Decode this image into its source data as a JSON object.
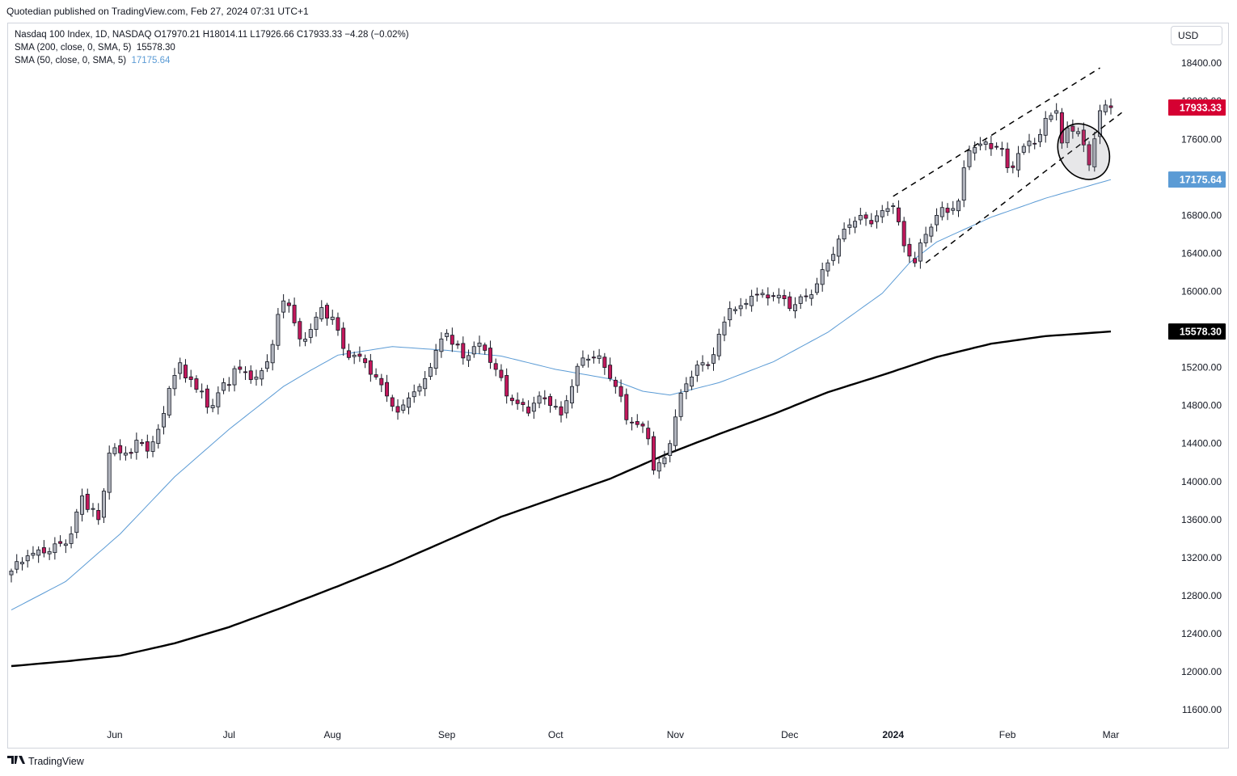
{
  "header": {
    "publisher_line": "Quotedian published on TradingView.com, Feb 27, 2024 07:31 UTC+1"
  },
  "legend": {
    "main": "Nasdaq 100 Index, 1D, NASDAQ  O17970.21  H18014.11  L17926.66  C17933.33  −4.28 (−0.02%)",
    "sma200_label": "SMA (200, close, 0, SMA, 5)",
    "sma200_value": "15578.30",
    "sma50_label": "SMA (50, close, 0, SMA, 5)",
    "sma50_value": "17175.64"
  },
  "currency": "USD",
  "footer": {
    "brand": "TradingView",
    "logo": "tradingview-logo-icon"
  },
  "colors": {
    "up_body": "#b2b5be",
    "down_body": "#c2185b",
    "candle_border": "#131722",
    "sma50": "#5b9bd5",
    "sma200": "#000000",
    "last_price_label": "#d50032",
    "sma50_label": "#5b9bd5",
    "sma200_label": "#000000"
  },
  "chart_data": {
    "type": "candlestick",
    "symbol": "Nasdaq 100 Index",
    "interval": "1D",
    "y_axis": {
      "range": [
        11400,
        18700
      ],
      "ticks": [
        11600,
        12000,
        12400,
        12800,
        13200,
        13600,
        14000,
        14400,
        14800,
        15200,
        15600,
        16000,
        16400,
        16800,
        17200,
        17600,
        18000,
        18400
      ],
      "tick_labels": [
        "11600.00",
        "12000.00",
        "12400.00",
        "12800.00",
        "13200.00",
        "13600.00",
        "14000.00",
        "14400.00",
        "14800.00",
        "15200.00",
        "15600.00",
        "16000.00",
        "16400.00",
        "16800.00",
        "17200.00",
        "17600.00",
        "18000.00",
        "18400.00"
      ]
    },
    "x_axis": {
      "labels": [
        {
          "text": "Jun",
          "bold": false
        },
        {
          "text": "Jul",
          "bold": false
        },
        {
          "text": "Aug",
          "bold": false
        },
        {
          "text": "Sep",
          "bold": false
        },
        {
          "text": "Oct",
          "bold": false
        },
        {
          "text": "Nov",
          "bold": false
        },
        {
          "text": "Dec",
          "bold": false
        },
        {
          "text": "2024",
          "bold": true
        },
        {
          "text": "Feb",
          "bold": false
        },
        {
          "text": "Mar",
          "bold": false
        }
      ],
      "label_bar_index": [
        19,
        40,
        59,
        80,
        100,
        122,
        143,
        162,
        183,
        202
      ]
    },
    "close_anchors": [
      [
        0,
        13060
      ],
      [
        3,
        13220
      ],
      [
        6,
        13250
      ],
      [
        9,
        13350
      ],
      [
        11,
        13450
      ],
      [
        13,
        13850
      ],
      [
        16,
        13600
      ],
      [
        17,
        13900
      ],
      [
        18,
        14300
      ],
      [
        21,
        14300
      ],
      [
        24,
        14400
      ],
      [
        25,
        14320
      ],
      [
        27,
        14550
      ],
      [
        29,
        14980
      ],
      [
        31,
        15250
      ],
      [
        34,
        14970
      ],
      [
        37,
        14800
      ],
      [
        39,
        15040
      ],
      [
        42,
        15180
      ],
      [
        45,
        15100
      ],
      [
        47,
        15260
      ],
      [
        50,
        15900
      ],
      [
        51,
        15850
      ],
      [
        53,
        15500
      ],
      [
        55,
        15600
      ],
      [
        57,
        15830
      ],
      [
        59,
        15730
      ],
      [
        61,
        15400
      ],
      [
        63,
        15330
      ],
      [
        65,
        15250
      ],
      [
        67,
        15100
      ],
      [
        69,
        14900
      ],
      [
        71,
        14730
      ],
      [
        73,
        14880
      ],
      [
        75,
        15000
      ],
      [
        77,
        15200
      ],
      [
        79,
        15500
      ],
      [
        80,
        15560
      ],
      [
        83,
        15300
      ],
      [
        85,
        15420
      ],
      [
        87,
        15380
      ],
      [
        89,
        15180
      ],
      [
        91,
        14900
      ],
      [
        93,
        14820
      ],
      [
        95,
        14720
      ],
      [
        97,
        14900
      ],
      [
        99,
        14800
      ],
      [
        101,
        14700
      ],
      [
        103,
        15000
      ],
      [
        105,
        15300
      ],
      [
        107,
        15300
      ],
      [
        109,
        15200
      ],
      [
        111,
        15000
      ],
      [
        113,
        14650
      ],
      [
        115,
        14600
      ],
      [
        117,
        14450
      ],
      [
        118,
        14120
      ],
      [
        120,
        14250
      ],
      [
        121,
        14400
      ],
      [
        122,
        14680
      ],
      [
        123,
        14930
      ],
      [
        125,
        15100
      ],
      [
        127,
        15250
      ],
      [
        128,
        15220
      ],
      [
        130,
        15550
      ],
      [
        132,
        15820
      ],
      [
        134,
        15850
      ],
      [
        136,
        15950
      ],
      [
        138,
        15980
      ],
      [
        141,
        15960
      ],
      [
        143,
        15820
      ],
      [
        146,
        15950
      ],
      [
        148,
        16080
      ],
      [
        150,
        16300
      ],
      [
        152,
        16550
      ],
      [
        154,
        16700
      ],
      [
        156,
        16800
      ],
      [
        158,
        16710
      ],
      [
        160,
        16850
      ],
      [
        162,
        16900
      ],
      [
        164,
        16480
      ],
      [
        166,
        16300
      ],
      [
        168,
        16600
      ],
      [
        170,
        16800
      ],
      [
        172,
        16830
      ],
      [
        174,
        16950
      ],
      [
        175,
        17300
      ],
      [
        176,
        17480
      ],
      [
        178,
        17550
      ],
      [
        180,
        17500
      ],
      [
        182,
        17500
      ],
      [
        183,
        17300
      ],
      [
        185,
        17450
      ],
      [
        187,
        17580
      ],
      [
        189,
        17650
      ],
      [
        190,
        17820
      ],
      [
        192,
        17900
      ],
      [
        193,
        17560
      ],
      [
        194,
        17720
      ],
      [
        196,
        17680
      ],
      [
        197,
        17540
      ],
      [
        198,
        17330
      ],
      [
        200,
        17900
      ],
      [
        201,
        17960
      ],
      [
        202,
        17933
      ]
    ],
    "sma50_anchors": [
      [
        0,
        12650
      ],
      [
        10,
        12950
      ],
      [
        20,
        13450
      ],
      [
        30,
        14050
      ],
      [
        40,
        14550
      ],
      [
        50,
        15000
      ],
      [
        55,
        15170
      ],
      [
        60,
        15330
      ],
      [
        70,
        15420
      ],
      [
        80,
        15380
      ],
      [
        90,
        15320
      ],
      [
        100,
        15180
      ],
      [
        110,
        15080
      ],
      [
        116,
        14950
      ],
      [
        121,
        14910
      ],
      [
        130,
        15040
      ],
      [
        140,
        15260
      ],
      [
        150,
        15570
      ],
      [
        160,
        15980
      ],
      [
        165,
        16300
      ],
      [
        170,
        16520
      ],
      [
        180,
        16780
      ],
      [
        190,
        16980
      ],
      [
        202,
        17175.64
      ]
    ],
    "sma200_anchors": [
      [
        0,
        12060
      ],
      [
        10,
        12110
      ],
      [
        20,
        12170
      ],
      [
        30,
        12300
      ],
      [
        40,
        12470
      ],
      [
        50,
        12680
      ],
      [
        60,
        12900
      ],
      [
        70,
        13130
      ],
      [
        80,
        13380
      ],
      [
        90,
        13630
      ],
      [
        100,
        13830
      ],
      [
        110,
        14030
      ],
      [
        120,
        14280
      ],
      [
        130,
        14500
      ],
      [
        140,
        14710
      ],
      [
        150,
        14940
      ],
      [
        160,
        15120
      ],
      [
        170,
        15310
      ],
      [
        180,
        15450
      ],
      [
        190,
        15530
      ],
      [
        202,
        15578.3
      ]
    ],
    "price_labels": [
      {
        "name": "last-price-label",
        "text": "17933.33",
        "value": 17933.33,
        "color": "#d50032"
      },
      {
        "name": "sma50-price-label",
        "text": "17175.64",
        "value": 17175.64,
        "color": "#5b9bd5"
      },
      {
        "name": "sma200-price-label",
        "text": "15578.30",
        "value": 15578.3,
        "color": "#000000"
      }
    ],
    "annotations": {
      "trend_channel": [
        {
          "name": "channel-upper-line",
          "from": [
            162,
            17000
          ],
          "to": [
            200,
            18350
          ]
        },
        {
          "name": "channel-lower-line",
          "from": [
            168,
            16300
          ],
          "to": [
            204,
            17880
          ]
        }
      ],
      "ellipse": {
        "name": "highlight-ellipse",
        "center": [
          197,
          17470
        ],
        "rx_bars": 4.4,
        "ry_value": 310,
        "rotation": -35
      }
    }
  }
}
